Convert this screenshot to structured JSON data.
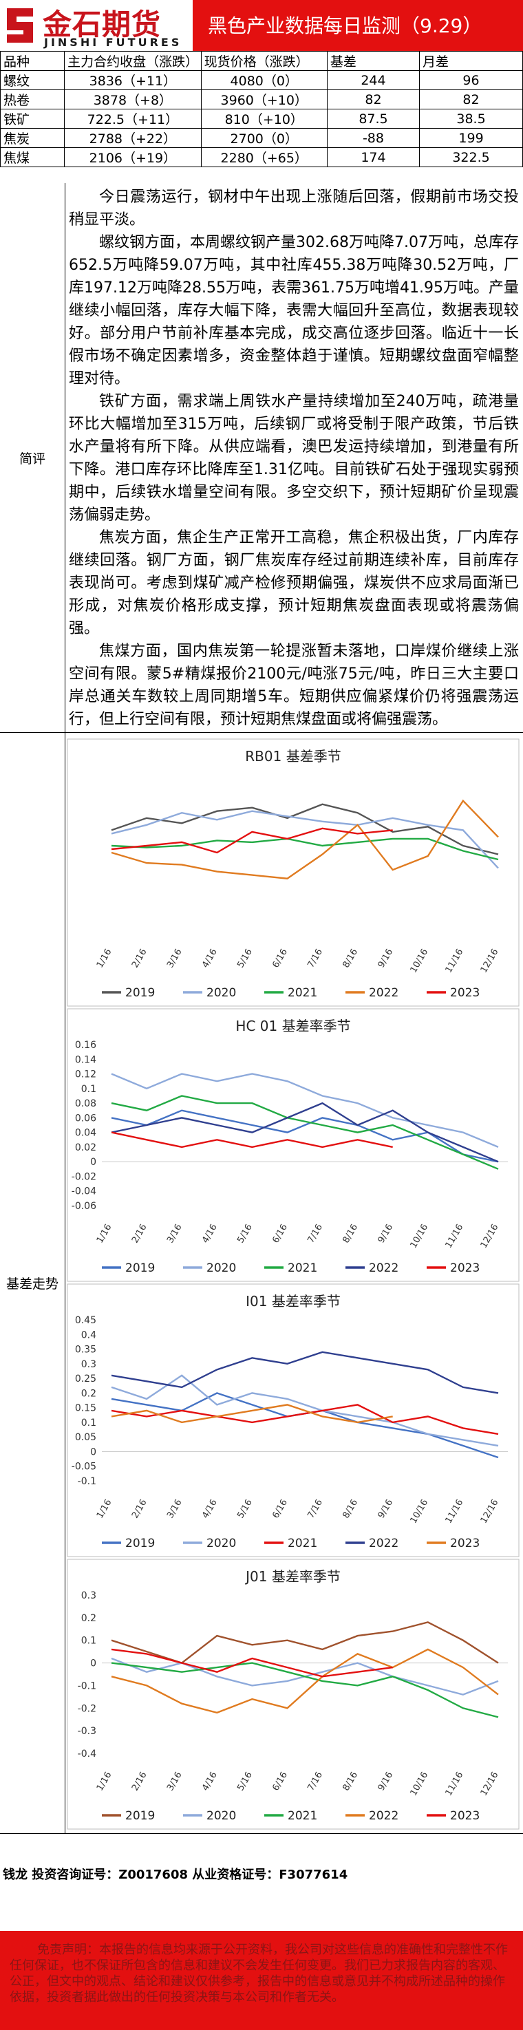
{
  "header": {
    "logo_cn": "金石期货",
    "logo_en": "JINSHI FUTURES",
    "title": "黑色产业数据每日监测（9.29）"
  },
  "table": {
    "columns": [
      "品种",
      "主力合约收盘（涨跌）",
      "现货价格（涨跌）",
      "基差",
      "月差"
    ],
    "rows": [
      {
        "name": "螺纹",
        "futures": "3836（+11）",
        "spot": "4080（0）",
        "basis": "244",
        "month_spread": "96"
      },
      {
        "name": "热卷",
        "futures": "3878（+8）",
        "spot": "3960（+10）",
        "basis": "82",
        "month_spread": "82"
      },
      {
        "name": "铁矿",
        "futures": "722.5（+11）",
        "spot": "810（+10）",
        "basis": "87.5",
        "month_spread": "38.5"
      },
      {
        "name": "焦炭",
        "futures": "2788（+22）",
        "spot": "2700（0）",
        "basis": "-88",
        "month_spread": "199"
      },
      {
        "name": "焦煤",
        "futures": "2106（+19）",
        "spot": "2280（+65）",
        "basis": "174",
        "month_spread": "322.5"
      }
    ]
  },
  "commentary": {
    "label": "简评",
    "paragraphs": [
      "今日震荡运行，钢材中午出现上涨随后回落，假期前市场交投稍显平淡。",
      "螺纹钢方面，本周螺纹钢产量302.68万吨降7.07万吨，总库存652.5万吨降59.07万吨，其中社库455.38万吨降30.52万吨，厂库197.12万吨降28.55万吨，表需361.75万吨增41.95万吨。产量继续小幅回落，库存大幅下降，表需大幅回升至高位，数据表现较好。部分用户节前补库基本完成，成交高位逐步回落。临近十一长假市场不确定因素增多，资金整体趋于谨慎。短期螺纹盘面窄幅整理对待。",
      "铁矿方面，需求端上周铁水产量持续增加至240万吨，疏港量环比大幅增加至315万吨，后续钢厂或将受制于限产政策，节后铁水产量将有所下降。从供应端看，澳巴发运持续增加，到港量有所下降。港口库存环比降库至1.31亿吨。目前铁矿石处于强现实弱预期中，后续铁水增量空间有限。多空交织下，预计短期矿价呈现震荡偏弱走势。",
      "焦炭方面，焦企生产正常开工高稳，焦企积极出货，厂内库存继续回落。钢厂方面，钢厂焦炭库存经过前期连续补库，目前库存表现尚可。考虑到煤矿减产检修预期偏强，煤炭供不应求局面渐已形成，对焦炭价格形成支撑，预计短期焦炭盘面表现或将震荡偏强。",
      "焦煤方面，国内焦炭第一轮提涨暂未落地，口岸煤价继续上涨空间有限。蒙5#精煤报价2100元/吨涨75元/吨，昨日三大主要口岸总通关车数较上周同期增5车。短期供应偏紧煤价仍将强震荡运行，但上行空间有限，预计短期焦煤盘面或将偏强震荡。"
    ]
  },
  "charts_section": {
    "label": "基差走势"
  },
  "chart_data": [
    {
      "type": "line",
      "title": "RB01 基差季节",
      "x": [
        "1/16",
        "2/16",
        "3/16",
        "4/16",
        "5/16",
        "6/16",
        "7/16",
        "8/16",
        "9/16",
        "10/16",
        "11/16",
        "12/16"
      ],
      "ylim": [
        -600,
        1200
      ],
      "show_y_ticks": false,
      "series": [
        {
          "name": "2019",
          "color": "#555555",
          "values": [
            560,
            700,
            640,
            780,
            820,
            700,
            860,
            760,
            540,
            600,
            380,
            280
          ]
        },
        {
          "name": "2020",
          "color": "#8eaadb",
          "values": [
            520,
            620,
            760,
            680,
            780,
            720,
            660,
            620,
            700,
            620,
            560,
            120
          ]
        },
        {
          "name": "2021",
          "color": "#22aa44",
          "values": [
            380,
            360,
            380,
            440,
            420,
            460,
            380,
            420,
            460,
            460,
            320,
            220
          ]
        },
        {
          "name": "2022",
          "color": "#e07b20",
          "values": [
            300,
            180,
            160,
            80,
            40,
            0,
            280,
            620,
            100,
            260,
            900,
            480
          ]
        },
        {
          "name": "2023",
          "color": "#e31010",
          "values": [
            340,
            380,
            420,
            300,
            540,
            460,
            580,
            520,
            560,
            null,
            null,
            null
          ]
        }
      ]
    },
    {
      "type": "line",
      "title": "HC 01 基差率季节",
      "x": [
        "1/16",
        "2/16",
        "3/16",
        "4/16",
        "5/16",
        "6/16",
        "7/16",
        "8/16",
        "9/16",
        "10/16",
        "11/16",
        "12/16"
      ],
      "ylim": [
        -0.06,
        0.16
      ],
      "yticks": [
        "0.16",
        "0.14",
        "0.12",
        "0.1",
        "0.08",
        "0.06",
        "0.04",
        "0.02",
        "0",
        "-0.02",
        "-0.04",
        "-0.06"
      ],
      "series": [
        {
          "name": "2019",
          "color": "#4472c4",
          "values": [
            0.06,
            0.05,
            0.07,
            0.06,
            0.05,
            0.04,
            0.06,
            0.05,
            0.03,
            0.04,
            0.01,
            0.0
          ]
        },
        {
          "name": "2020",
          "color": "#8eaadb",
          "values": [
            0.12,
            0.1,
            0.12,
            0.11,
            0.12,
            0.11,
            0.09,
            0.08,
            0.06,
            0.05,
            0.04,
            0.02
          ]
        },
        {
          "name": "2021",
          "color": "#22aa44",
          "values": [
            0.08,
            0.07,
            0.09,
            0.08,
            0.08,
            0.06,
            0.05,
            0.04,
            0.05,
            0.03,
            0.01,
            -0.01
          ]
        },
        {
          "name": "2022",
          "color": "#2f3f8f",
          "values": [
            0.04,
            0.05,
            0.06,
            0.05,
            0.04,
            0.06,
            0.08,
            0.05,
            0.07,
            0.04,
            0.02,
            0.0
          ]
        },
        {
          "name": "2023",
          "color": "#e31010",
          "values": [
            0.04,
            0.03,
            0.02,
            0.03,
            0.02,
            0.03,
            0.02,
            0.03,
            0.02,
            null,
            null,
            null
          ]
        }
      ]
    },
    {
      "type": "line",
      "title": "I01 基差率季节",
      "x": [
        "1/16",
        "2/16",
        "3/16",
        "4/16",
        "5/16",
        "6/16",
        "7/16",
        "8/16",
        "9/16",
        "10/16",
        "11/16",
        "12/16"
      ],
      "ylim": [
        -0.1,
        0.45
      ],
      "yticks": [
        "0.45",
        "0.4",
        "0.35",
        "0.3",
        "0.25",
        "0.2",
        "0.15",
        "0.1",
        "0.05",
        "0",
        "-0.05",
        "-0.1"
      ],
      "series": [
        {
          "name": "2019",
          "color": "#4472c4",
          "values": [
            0.18,
            0.16,
            0.14,
            0.2,
            0.16,
            0.12,
            0.14,
            0.1,
            0.08,
            0.06,
            0.02,
            -0.02
          ]
        },
        {
          "name": "2020",
          "color": "#8eaadb",
          "values": [
            0.22,
            0.18,
            0.26,
            0.16,
            0.2,
            0.18,
            0.14,
            0.12,
            0.1,
            0.06,
            0.04,
            0.02
          ]
        },
        {
          "name": "2021",
          "color": "#e31010",
          "values": [
            0.14,
            0.12,
            0.14,
            0.12,
            0.1,
            0.12,
            0.14,
            0.16,
            0.1,
            0.12,
            0.08,
            0.06
          ]
        },
        {
          "name": "2022",
          "color": "#2f3f8f",
          "values": [
            0.26,
            0.24,
            0.22,
            0.28,
            0.32,
            0.3,
            0.34,
            0.32,
            0.3,
            0.28,
            0.22,
            0.2
          ]
        },
        {
          "name": "2023",
          "color": "#e07b20",
          "values": [
            0.12,
            0.14,
            0.1,
            0.12,
            0.14,
            0.16,
            0.12,
            0.1,
            0.12,
            null,
            null,
            null
          ]
        }
      ]
    },
    {
      "type": "line",
      "title": "J01 基差率季节",
      "x": [
        "1/16",
        "2/16",
        "3/16",
        "4/16",
        "5/16",
        "6/16",
        "7/16",
        "8/16",
        "9/16",
        "10/16",
        "11/16",
        "12/16"
      ],
      "ylim": [
        -0.4,
        0.3
      ],
      "yticks": [
        "0.3",
        "0.2",
        "0.1",
        "0",
        "-0.1",
        "-0.2",
        "-0.3",
        "-0.4"
      ],
      "series": [
        {
          "name": "2019",
          "color": "#a0522d",
          "values": [
            0.1,
            0.05,
            0.0,
            0.12,
            0.08,
            0.1,
            0.06,
            0.12,
            0.14,
            0.18,
            0.1,
            0.0
          ]
        },
        {
          "name": "2020",
          "color": "#8eaadb",
          "values": [
            0.02,
            -0.04,
            0.0,
            -0.06,
            -0.1,
            -0.08,
            -0.04,
            0.0,
            -0.06,
            -0.1,
            -0.14,
            -0.08
          ]
        },
        {
          "name": "2021",
          "color": "#22aa44",
          "values": [
            0.0,
            -0.02,
            -0.04,
            -0.02,
            0.0,
            -0.04,
            -0.08,
            -0.1,
            -0.06,
            -0.12,
            -0.2,
            -0.24
          ]
        },
        {
          "name": "2022",
          "color": "#e07b20",
          "values": [
            -0.06,
            -0.1,
            -0.18,
            -0.22,
            -0.16,
            -0.2,
            -0.06,
            0.04,
            -0.02,
            0.06,
            -0.02,
            -0.14
          ]
        },
        {
          "name": "2023",
          "color": "#e31010",
          "values": [
            0.06,
            0.04,
            0.0,
            -0.04,
            0.02,
            -0.02,
            -0.06,
            -0.04,
            -0.02,
            null,
            null,
            null
          ]
        }
      ]
    }
  ],
  "analyst": "钱龙 投资咨询证号：Z0017608 从业资格证号：F3077614",
  "disclaimer": "免责声明：本报告的信息均来源于公开资料，我公司对这些信息的准确性和完整性不作任何保证，也不保证所包含的信息和建议不会发生任何变更。我们已力求报告内容的客观、公正，但文中的观点、结论和建议仅供参考，报告中的信息或意见并不构成所述品种的操作依据，投资者据此做出的任何投资决策与本公司和作者无关。"
}
